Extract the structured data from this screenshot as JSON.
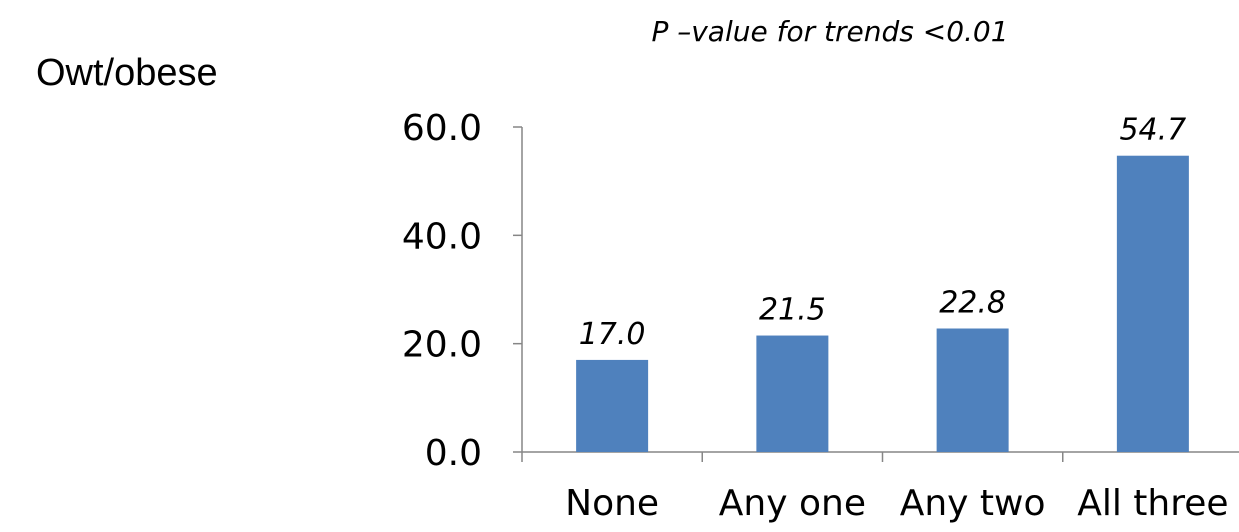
{
  "side_label": "Owt/obese",
  "chart_data": {
    "type": "bar",
    "title": "P –value for trends <0.01",
    "categories": [
      "None",
      "Any one",
      "Any two",
      "All three"
    ],
    "values": [
      17.0,
      21.5,
      22.8,
      54.7
    ],
    "data_labels": [
      "17.0",
      "21.5",
      "22.8",
      "54.7"
    ],
    "yticks": [
      "0.0",
      "20.0",
      "40.0",
      "60.0"
    ],
    "ylim": [
      0,
      60
    ],
    "xlabel": "",
    "ylabel": "",
    "grid": false,
    "bar_color": "#4F81BD",
    "axis_color": "#868686"
  }
}
